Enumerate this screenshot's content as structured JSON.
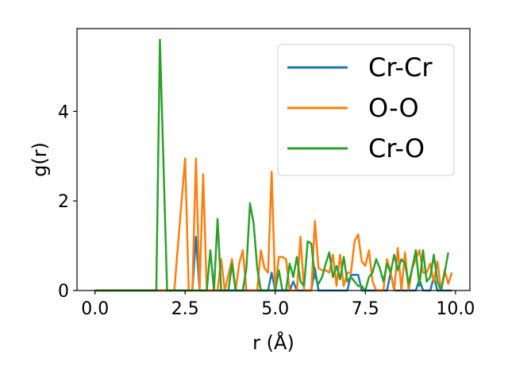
{
  "chart_data": {
    "type": "line",
    "xlabel": "r (Å)",
    "ylabel": "g(r)",
    "xlim": [
      -0.5,
      10.4
    ],
    "ylim": [
      0,
      5.85
    ],
    "x_ticks": [
      0.0,
      2.5,
      5.0,
      7.5,
      10.0
    ],
    "x_tick_labels": [
      "0.0",
      "2.5",
      "5.0",
      "7.5",
      "10.0"
    ],
    "y_ticks": [
      0,
      2,
      4
    ],
    "y_tick_labels": [
      "0",
      "2",
      "4"
    ],
    "grid": false,
    "legend_position": "top-right",
    "series": [
      {
        "name": "Cr-Cr",
        "color": "#1f77b4",
        "points": [
          [
            0.0,
            0.0
          ],
          [
            2.7,
            0.0
          ],
          [
            2.8,
            1.2
          ],
          [
            2.9,
            0.0
          ],
          [
            4.8,
            0.0
          ],
          [
            4.9,
            0.4
          ],
          [
            5.0,
            0.0
          ],
          [
            5.4,
            0.0
          ],
          [
            5.5,
            0.2
          ],
          [
            5.6,
            0.0
          ],
          [
            6.0,
            0.0
          ],
          [
            6.1,
            0.5
          ],
          [
            6.2,
            0.0
          ],
          [
            7.0,
            0.0
          ],
          [
            7.1,
            0.35
          ],
          [
            7.3,
            0.35
          ],
          [
            7.4,
            0.0
          ],
          [
            8.1,
            0.0
          ],
          [
            8.2,
            0.4
          ],
          [
            8.3,
            0.0
          ],
          [
            8.9,
            0.0
          ],
          [
            9.0,
            0.25
          ],
          [
            9.1,
            0.0
          ],
          [
            9.3,
            0.0
          ],
          [
            9.4,
            0.3
          ],
          [
            9.5,
            0.0
          ],
          [
            9.9,
            0.0
          ]
        ]
      },
      {
        "name": "O-O",
        "color": "#ff7f0e",
        "points": [
          [
            0.0,
            0.0
          ],
          [
            2.2,
            0.0
          ],
          [
            2.3,
            1.0
          ],
          [
            2.5,
            2.95
          ],
          [
            2.6,
            0.0
          ],
          [
            2.7,
            0.0
          ],
          [
            2.8,
            2.95
          ],
          [
            2.9,
            0.0
          ],
          [
            3.0,
            2.6
          ],
          [
            3.1,
            0.0
          ],
          [
            3.4,
            0.0
          ],
          [
            3.5,
            0.7
          ],
          [
            3.6,
            0.0
          ],
          [
            3.8,
            0.7
          ],
          [
            3.9,
            0.0
          ],
          [
            4.0,
            0.6
          ],
          [
            4.1,
            0.9
          ],
          [
            4.2,
            0.0
          ],
          [
            4.5,
            0.0
          ],
          [
            4.6,
            0.9
          ],
          [
            4.7,
            0.5
          ],
          [
            4.8,
            0.4
          ],
          [
            4.9,
            2.65
          ],
          [
            5.0,
            0.0
          ],
          [
            5.1,
            0.75
          ],
          [
            5.2,
            0.75
          ],
          [
            5.3,
            0.7
          ],
          [
            5.4,
            0.0
          ],
          [
            5.6,
            0.0
          ],
          [
            5.7,
            1.2
          ],
          [
            5.8,
            0.0
          ],
          [
            6.0,
            0.0
          ],
          [
            6.1,
            1.55
          ],
          [
            6.2,
            0.5
          ],
          [
            6.3,
            0.45
          ],
          [
            6.4,
            0.45
          ],
          [
            6.5,
            0.4
          ],
          [
            6.6,
            0.8
          ],
          [
            6.7,
            0.1
          ],
          [
            6.8,
            0.8
          ],
          [
            6.9,
            0.1
          ],
          [
            7.0,
            0.4
          ],
          [
            7.1,
            0.4
          ],
          [
            7.2,
            1.1
          ],
          [
            7.3,
            1.25
          ],
          [
            7.4,
            0.65
          ],
          [
            7.5,
            0.55
          ],
          [
            7.6,
            0.9
          ],
          [
            7.7,
            0.2
          ],
          [
            7.8,
            0.0
          ],
          [
            8.0,
            0.0
          ],
          [
            8.1,
            0.7
          ],
          [
            8.2,
            0.4
          ],
          [
            8.3,
            0.0
          ],
          [
            8.4,
            0.95
          ],
          [
            8.5,
            0.0
          ],
          [
            8.6,
            0.85
          ],
          [
            8.7,
            0.0
          ],
          [
            8.8,
            0.5
          ],
          [
            8.9,
            0.7
          ],
          [
            9.0,
            0.9
          ],
          [
            9.1,
            0.4
          ],
          [
            9.2,
            0.4
          ],
          [
            9.3,
            0.6
          ],
          [
            9.4,
            0.2
          ],
          [
            9.5,
            0.65
          ],
          [
            9.6,
            0.0
          ],
          [
            9.7,
            0.45
          ],
          [
            9.8,
            0.15
          ],
          [
            9.9,
            0.4
          ]
        ]
      },
      {
        "name": "Cr-O",
        "color": "#2ca02c",
        "points": [
          [
            0.0,
            0.0
          ],
          [
            1.7,
            0.0
          ],
          [
            1.8,
            5.6
          ],
          [
            2.0,
            0.0
          ],
          [
            3.1,
            0.0
          ],
          [
            3.2,
            0.9
          ],
          [
            3.3,
            0.0
          ],
          [
            3.4,
            1.6
          ],
          [
            3.5,
            0.0
          ],
          [
            3.7,
            0.0
          ],
          [
            3.8,
            0.6
          ],
          [
            3.9,
            0.0
          ],
          [
            4.1,
            0.0
          ],
          [
            4.2,
            0.5
          ],
          [
            4.3,
            1.95
          ],
          [
            4.4,
            1.5
          ],
          [
            4.5,
            0.5
          ],
          [
            4.6,
            0.0
          ],
          [
            5.0,
            0.0
          ],
          [
            5.1,
            0.45
          ],
          [
            5.2,
            0.0
          ],
          [
            5.3,
            0.0
          ],
          [
            5.4,
            0.6
          ],
          [
            5.5,
            0.3
          ],
          [
            5.6,
            0.75
          ],
          [
            5.7,
            0.2
          ],
          [
            5.8,
            0.1
          ],
          [
            5.9,
            1.1
          ],
          [
            6.0,
            1.05
          ],
          [
            6.1,
            0.3
          ],
          [
            6.2,
            0.15
          ],
          [
            6.3,
            0.3
          ],
          [
            6.4,
            0.6
          ],
          [
            6.5,
            0.85
          ],
          [
            6.6,
            0.3
          ],
          [
            6.7,
            0.55
          ],
          [
            6.8,
            0.25
          ],
          [
            6.9,
            0.75
          ],
          [
            7.0,
            0.2
          ],
          [
            7.1,
            0.3
          ],
          [
            7.2,
            0.2
          ],
          [
            7.3,
            0.1
          ],
          [
            7.4,
            0.1
          ],
          [
            7.5,
            0.0
          ],
          [
            7.6,
            0.3
          ],
          [
            7.7,
            0.4
          ],
          [
            7.8,
            0.7
          ],
          [
            7.9,
            0.5
          ],
          [
            8.0,
            0.2
          ],
          [
            8.1,
            0.6
          ],
          [
            8.2,
            0.4
          ],
          [
            8.3,
            0.8
          ],
          [
            8.4,
            0.45
          ],
          [
            8.5,
            0.7
          ],
          [
            8.6,
            0.6
          ],
          [
            8.7,
            0.15
          ],
          [
            8.8,
            0.5
          ],
          [
            8.9,
            0.9
          ],
          [
            9.0,
            0.1
          ],
          [
            9.1,
            0.9
          ],
          [
            9.2,
            0.2
          ],
          [
            9.3,
            0.3
          ],
          [
            9.4,
            0.8
          ],
          [
            9.5,
            0.2
          ],
          [
            9.6,
            0.0
          ],
          [
            9.7,
            0.4
          ],
          [
            9.8,
            0.85
          ]
        ]
      }
    ]
  }
}
